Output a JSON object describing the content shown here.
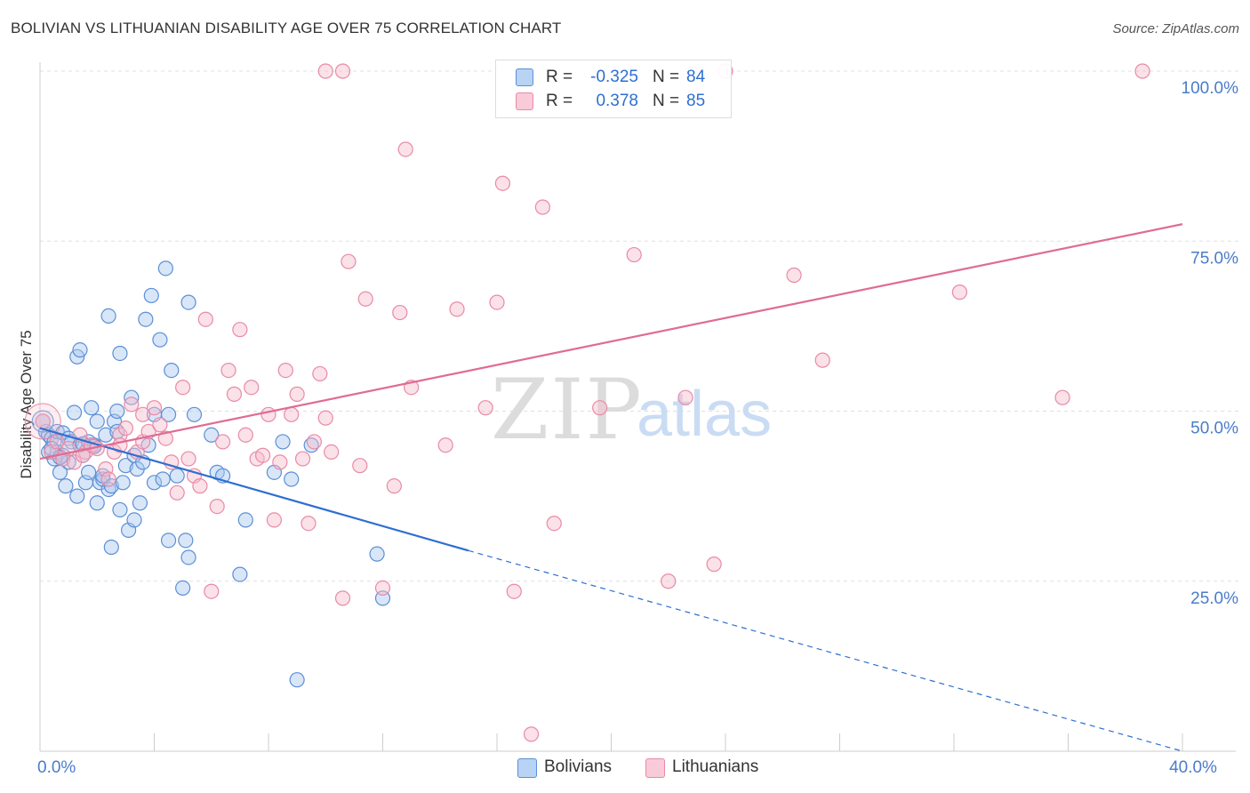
{
  "header": {
    "title": "BOLIVIAN VS LITHUANIAN DISABILITY AGE OVER 75 CORRELATION CHART",
    "source": "Source: ZipAtlas.com"
  },
  "legend": {
    "r_label": "R =",
    "n_label": "N =",
    "rows": [
      {
        "r": "-0.325",
        "n": "84"
      },
      {
        "r": "0.378",
        "n": "85"
      }
    ]
  },
  "colors": {
    "bolivians_fill": "#a8c8f0",
    "bolivians_stroke": "#5b8fd6",
    "bolivians_line": "#2e6fd1",
    "lithuanians_fill": "#f6bccd",
    "lithuanians_stroke": "#e88aa8",
    "lithuanians_line": "#e06b94",
    "tick_text": "#4a7cc9",
    "grid": "#e0e0e0"
  },
  "chart_data": {
    "type": "scatter",
    "ylabel": "Disability Age Over 75",
    "xlim": [
      0,
      40
    ],
    "ylim": [
      0,
      102
    ],
    "x_ticks": [
      {
        "value": 0,
        "label": "0.0%"
      },
      {
        "value": 40,
        "label": "40.0%"
      }
    ],
    "x_minor_ticks": [
      0,
      4,
      8,
      12,
      16,
      20,
      24,
      28,
      32,
      36,
      40
    ],
    "y_ticks": [
      {
        "value": 25,
        "label": "25.0%"
      },
      {
        "value": 50,
        "label": "50.0%"
      },
      {
        "value": 75,
        "label": "75.0%"
      },
      {
        "value": 100,
        "label": "100.0%"
      }
    ],
    "grid": "horizontal dashed",
    "watermark": "ZIPatlas",
    "series": [
      {
        "name": "Bolivians",
        "r": -0.325,
        "n": 84,
        "trend": {
          "x0": 0,
          "y0": 47.5,
          "x1": 15,
          "y1": 29.5,
          "dash_to_x": 40,
          "dash_to_y": 0
        },
        "points": [
          [
            0.1,
            48.5
          ],
          [
            0.2,
            47
          ],
          [
            0.3,
            46.5
          ],
          [
            0.3,
            44
          ],
          [
            0.4,
            46
          ],
          [
            0.5,
            45.5
          ],
          [
            0.5,
            43
          ],
          [
            0.6,
            47
          ],
          [
            0.6,
            44
          ],
          [
            0.7,
            41
          ],
          [
            0.8,
            43.5
          ],
          [
            0.8,
            46.8
          ],
          [
            0.9,
            39
          ],
          [
            1.0,
            46
          ],
          [
            1.0,
            42.5
          ],
          [
            1.1,
            45.5
          ],
          [
            1.2,
            49.8
          ],
          [
            1.3,
            58
          ],
          [
            1.3,
            37.5
          ],
          [
            1.4,
            59
          ],
          [
            1.4,
            45
          ],
          [
            1.5,
            43.5
          ],
          [
            1.6,
            39.5
          ],
          [
            1.7,
            45.5
          ],
          [
            1.7,
            41
          ],
          [
            1.8,
            50.5
          ],
          [
            1.9,
            45
          ],
          [
            2.0,
            48.5
          ],
          [
            2.0,
            36.5
          ],
          [
            2.1,
            39.5
          ],
          [
            2.2,
            40
          ],
          [
            2.3,
            46.5
          ],
          [
            2.4,
            64
          ],
          [
            2.4,
            38.5
          ],
          [
            2.5,
            39
          ],
          [
            2.5,
            30
          ],
          [
            2.6,
            48.5
          ],
          [
            2.7,
            50
          ],
          [
            2.7,
            47
          ],
          [
            2.8,
            58.5
          ],
          [
            2.8,
            35.5
          ],
          [
            2.9,
            39.5
          ],
          [
            3.0,
            42
          ],
          [
            3.1,
            32.5
          ],
          [
            3.2,
            52
          ],
          [
            3.3,
            34
          ],
          [
            3.3,
            43.5
          ],
          [
            3.4,
            41.5
          ],
          [
            3.5,
            36.5
          ],
          [
            3.6,
            42.5
          ],
          [
            3.7,
            63.5
          ],
          [
            3.8,
            45
          ],
          [
            3.9,
            67
          ],
          [
            4.0,
            39.5
          ],
          [
            4.0,
            49.5
          ],
          [
            4.2,
            60.5
          ],
          [
            4.3,
            40
          ],
          [
            4.4,
            71
          ],
          [
            4.5,
            49.5
          ],
          [
            4.5,
            31
          ],
          [
            4.6,
            56
          ],
          [
            4.8,
            40.5
          ],
          [
            5.0,
            24
          ],
          [
            5.1,
            31
          ],
          [
            5.2,
            66
          ],
          [
            5.2,
            28.5
          ],
          [
            5.4,
            49.5
          ],
          [
            6.0,
            46.5
          ],
          [
            6.2,
            41
          ],
          [
            6.4,
            40.5
          ],
          [
            7.0,
            26
          ],
          [
            7.2,
            34
          ],
          [
            8.2,
            41
          ],
          [
            8.5,
            45.5
          ],
          [
            8.8,
            40
          ],
          [
            9.5,
            45
          ],
          [
            9.0,
            10.5
          ],
          [
            11.8,
            29
          ],
          [
            12.0,
            22.5
          ],
          [
            0.4,
            44.5
          ],
          [
            1.9,
            44.8
          ],
          [
            2.2,
            40.5
          ],
          [
            0.7,
            43.2
          ],
          [
            1.5,
            45.2
          ]
        ]
      },
      {
        "name": "Lithuanians",
        "r": 0.378,
        "n": 85,
        "trend": {
          "x0": 0,
          "y0": 43,
          "x1": 40,
          "y1": 77.5
        },
        "points": [
          [
            0.1,
            48.5
          ],
          [
            0.4,
            44
          ],
          [
            0.6,
            45.5
          ],
          [
            0.8,
            43
          ],
          [
            1.0,
            44.5
          ],
          [
            1.2,
            42.5
          ],
          [
            1.4,
            46.5
          ],
          [
            1.6,
            44
          ],
          [
            1.8,
            45
          ],
          [
            2.0,
            44.5
          ],
          [
            2.3,
            41.5
          ],
          [
            2.4,
            40
          ],
          [
            2.6,
            44
          ],
          [
            2.8,
            46.5
          ],
          [
            3.0,
            47.5
          ],
          [
            3.2,
            51
          ],
          [
            3.4,
            44
          ],
          [
            3.6,
            45.5
          ],
          [
            3.8,
            47
          ],
          [
            4.0,
            50.5
          ],
          [
            4.2,
            48
          ],
          [
            4.4,
            46
          ],
          [
            4.6,
            42.5
          ],
          [
            4.8,
            38
          ],
          [
            5.0,
            53.5
          ],
          [
            5.2,
            43
          ],
          [
            5.4,
            40.5
          ],
          [
            5.6,
            39
          ],
          [
            5.8,
            63.5
          ],
          [
            6.0,
            23.5
          ],
          [
            6.2,
            36
          ],
          [
            6.4,
            45.5
          ],
          [
            6.6,
            56
          ],
          [
            6.8,
            52.5
          ],
          [
            7.0,
            62
          ],
          [
            7.2,
            46.5
          ],
          [
            7.4,
            53.5
          ],
          [
            7.6,
            43
          ],
          [
            7.8,
            43.5
          ],
          [
            8.0,
            49.5
          ],
          [
            8.2,
            34
          ],
          [
            8.4,
            42.5
          ],
          [
            8.6,
            56
          ],
          [
            8.8,
            49.5
          ],
          [
            9.0,
            52.5
          ],
          [
            9.2,
            43
          ],
          [
            9.4,
            33.5
          ],
          [
            9.6,
            45.5
          ],
          [
            9.8,
            55.5
          ],
          [
            10.0,
            49
          ],
          [
            10.2,
            44
          ],
          [
            10.6,
            22.5
          ],
          [
            10.8,
            72
          ],
          [
            11.2,
            42
          ],
          [
            11.4,
            66.5
          ],
          [
            12.0,
            24
          ],
          [
            12.4,
            39
          ],
          [
            12.6,
            64.5
          ],
          [
            13.0,
            53.5
          ],
          [
            14.2,
            45
          ],
          [
            14.6,
            65
          ],
          [
            15.6,
            50.5
          ],
          [
            16.0,
            66
          ],
          [
            16.6,
            23.5
          ],
          [
            17.6,
            80
          ],
          [
            18.0,
            33.5
          ],
          [
            19.6,
            50.5
          ],
          [
            20.8,
            73
          ],
          [
            22.0,
            25
          ],
          [
            22.6,
            52
          ],
          [
            23.6,
            27.5
          ],
          [
            26.4,
            70
          ],
          [
            27.4,
            57.5
          ],
          [
            32.2,
            67.5
          ],
          [
            35.8,
            52
          ],
          [
            10.0,
            100
          ],
          [
            10.6,
            100
          ],
          [
            24.0,
            100
          ],
          [
            38.6,
            100
          ],
          [
            12.8,
            88.5
          ],
          [
            16.2,
            83.5
          ],
          [
            17.2,
            2.5
          ],
          [
            1.5,
            43.5
          ],
          [
            2.8,
            45
          ],
          [
            3.6,
            49.5
          ]
        ]
      }
    ]
  },
  "bottom_legend": [
    "Bolivians",
    "Lithuanians"
  ]
}
